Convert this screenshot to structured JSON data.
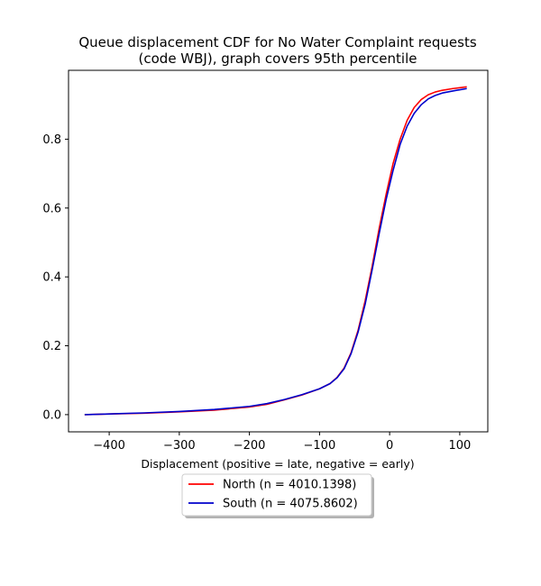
{
  "chart_data": {
    "type": "line",
    "title": "Queue displacement CDF for No Water Complaint  requests\n(code WBJ), graph covers 95th percentile",
    "xlabel": "Displacement (positive = late, negative = early)",
    "ylabel": "",
    "xlim": [
      -458,
      140
    ],
    "ylim": [
      -0.05,
      1.0
    ],
    "xticks": [
      -400,
      -300,
      -200,
      -100,
      0,
      100
    ],
    "yticks": [
      0.0,
      0.2,
      0.4,
      0.6,
      0.8
    ],
    "grid": false,
    "legend_position": "below",
    "series": [
      {
        "name": "North (n = 4010.1398)",
        "color": "#ff0000",
        "x": [
          -435,
          -400,
          -350,
          -300,
          -250,
          -200,
          -175,
          -150,
          -125,
          -100,
          -85,
          -75,
          -65,
          -55,
          -45,
          -35,
          -25,
          -15,
          -5,
          5,
          15,
          25,
          35,
          45,
          55,
          65,
          75,
          90,
          110
        ],
        "y": [
          0.0,
          0.002,
          0.004,
          0.008,
          0.013,
          0.022,
          0.03,
          0.043,
          0.057,
          0.075,
          0.09,
          0.108,
          0.135,
          0.18,
          0.245,
          0.33,
          0.43,
          0.54,
          0.64,
          0.73,
          0.8,
          0.855,
          0.892,
          0.915,
          0.929,
          0.937,
          0.942,
          0.947,
          0.952
        ]
      },
      {
        "name": "South (n = 4075.8602)",
        "color": "#0000cc",
        "x": [
          -435,
          -400,
          -350,
          -300,
          -250,
          -200,
          -175,
          -150,
          -125,
          -100,
          -85,
          -75,
          -65,
          -55,
          -45,
          -35,
          -25,
          -15,
          -5,
          5,
          15,
          25,
          35,
          45,
          55,
          65,
          75,
          90,
          110
        ],
        "y": [
          0.0,
          0.002,
          0.005,
          0.009,
          0.015,
          0.024,
          0.032,
          0.044,
          0.058,
          0.075,
          0.09,
          0.107,
          0.133,
          0.177,
          0.24,
          0.32,
          0.42,
          0.525,
          0.625,
          0.71,
          0.785,
          0.838,
          0.875,
          0.9,
          0.917,
          0.927,
          0.934,
          0.94,
          0.947
        ]
      }
    ]
  }
}
